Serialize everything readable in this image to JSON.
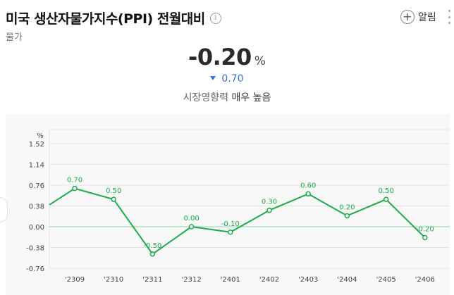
{
  "header": {
    "title": "미국 생산자물가지수(PPI) 전월대비",
    "info_symbol": "i",
    "category": "물가",
    "alarm_symbol": "+",
    "alarm_label": "알림"
  },
  "summary": {
    "value": "-0.20",
    "unit": "%",
    "change": "0.70",
    "change_direction": "down",
    "impact_label": "시장영향력",
    "impact_level": "매우 높음"
  },
  "colors": {
    "line": "#1aab4a",
    "change": "#3b74d4",
    "zero_line": "#8fd6a8"
  },
  "chart_data": {
    "type": "line",
    "ylabel": "%",
    "x": [
      "'23.09",
      "'23.10",
      "'23.11",
      "'23.12",
      "'24.01",
      "'24.02",
      "'24.03",
      "'24.04",
      "'24.05",
      "'24.06"
    ],
    "x_tick_labels": [
      "'2309",
      "'2310",
      "'2311",
      "'2312",
      "'2401",
      "'2402",
      "'2403",
      "'2404",
      "'2405",
      "'2406"
    ],
    "values": [
      0.7,
      0.5,
      -0.5,
      0.0,
      -0.1,
      0.3,
      0.6,
      0.2,
      0.5,
      -0.2
    ],
    "data_labels": [
      "0.70",
      "0.50",
      "-0.50",
      "0.00",
      "-0.10",
      "0.30",
      "0.60",
      "0.20",
      "0.50",
      "-0.20"
    ],
    "y_ticks": [
      1.52,
      1.14,
      0.76,
      0.38,
      0.0,
      -0.38,
      -0.76
    ],
    "y_tick_labels": [
      "1.52",
      "1.14",
      "0.76",
      "0.38",
      "0.00",
      "-0.38",
      "-0.76"
    ],
    "ylim": [
      -0.76,
      1.52
    ],
    "line_start_value": 0.4,
    "grid": true
  }
}
